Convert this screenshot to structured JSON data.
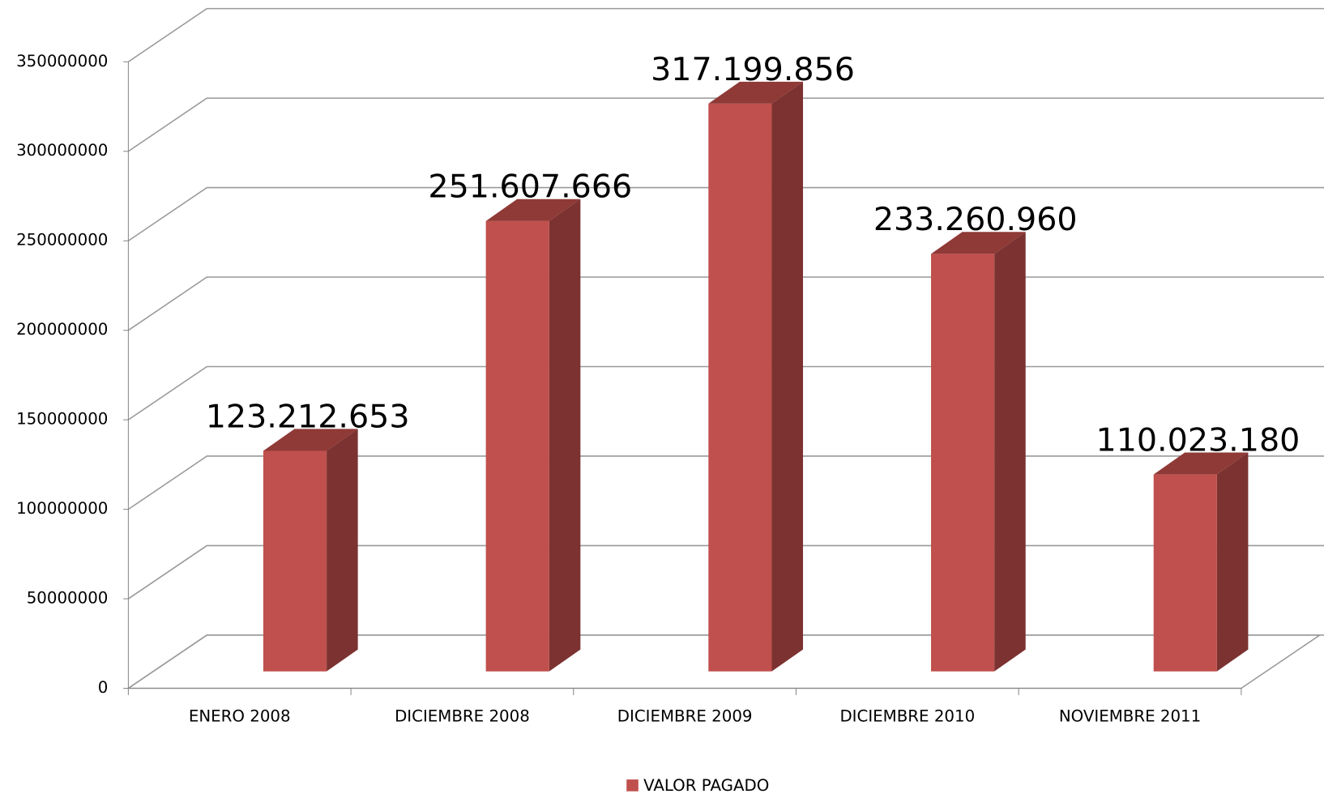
{
  "chart_data": {
    "type": "bar3d",
    "categories": [
      "ENERO  2008",
      "DICIEMBRE 2008",
      "DICIEMBRE 2009",
      "DICIEMBRE 2010",
      "NOVIEMBRE 2011"
    ],
    "series": [
      {
        "name": "VALOR PAGADO",
        "color": "#c0504d",
        "values": [
          123212653,
          251607666,
          317199856,
          233260960,
          110023180
        ],
        "value_labels": [
          "123.212.653",
          "251.607.666",
          "317.199.856",
          "233.260.960",
          "110.023.180"
        ]
      }
    ],
    "ylim": [
      0,
      350000000
    ],
    "yticks": [
      0,
      50000000,
      100000000,
      150000000,
      200000000,
      250000000,
      300000000,
      350000000
    ],
    "grid": true,
    "legend": "bottom"
  }
}
